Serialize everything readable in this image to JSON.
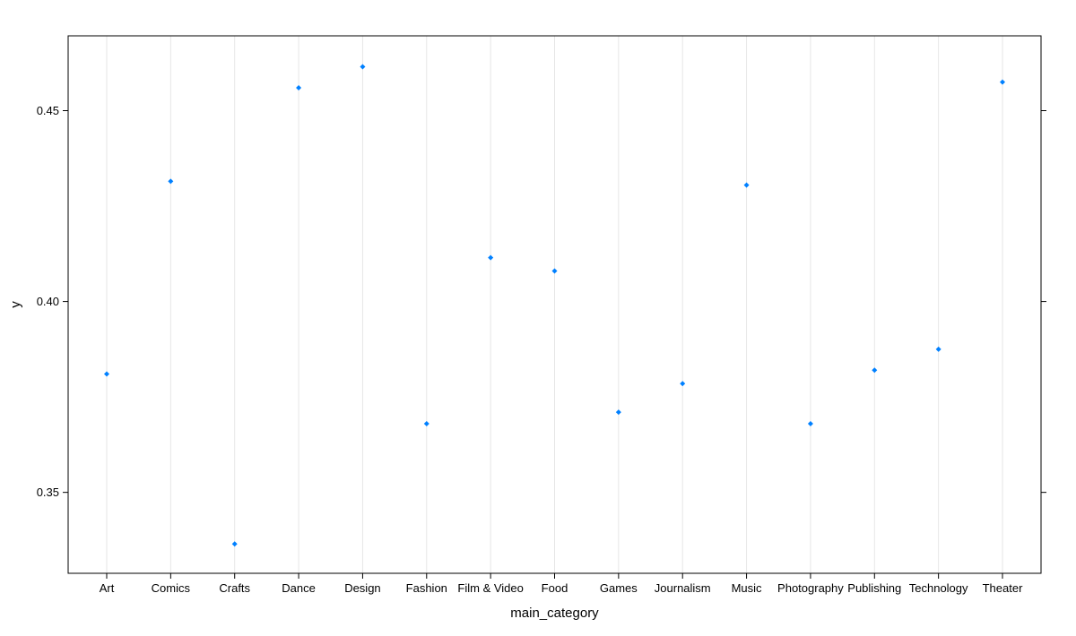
{
  "chart_data": {
    "type": "scatter",
    "xlabel": "main_category",
    "ylabel": "y",
    "categories": [
      "Art",
      "Comics",
      "Crafts",
      "Dance",
      "Design",
      "Fashion",
      "Film & Video",
      "Food",
      "Games",
      "Journalism",
      "Music",
      "Photography",
      "Publishing",
      "Technology",
      "Theater"
    ],
    "values": [
      0.381,
      0.4315,
      0.3365,
      0.456,
      0.4615,
      0.368,
      0.4115,
      0.408,
      0.371,
      0.3785,
      0.4305,
      0.368,
      0.382,
      0.3875,
      0.4575
    ],
    "ylim": [
      0.3288,
      0.4696
    ],
    "yticks": [
      0.35,
      0.4,
      0.45
    ],
    "ytick_labels": [
      "0.35",
      "0.40",
      "0.45"
    ],
    "grid": "vertical",
    "point_color": "#0080FF",
    "grid_color": "#E6E6E6",
    "frame_color": "#000000"
  }
}
